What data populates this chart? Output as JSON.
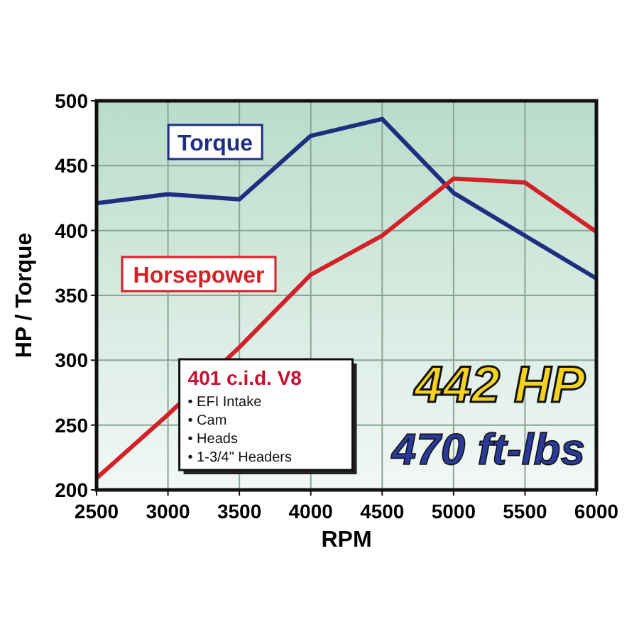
{
  "chart_data": {
    "type": "line",
    "xlabel": "RPM",
    "ylabel": "HP / Torque",
    "x": [
      2500,
      3000,
      3500,
      4000,
      4500,
      5000,
      5500,
      6000
    ],
    "series": [
      {
        "name": "Torque",
        "color": "#1f2f80",
        "values": [
          421,
          428,
          424,
          473,
          486,
          429,
          396,
          363
        ]
      },
      {
        "name": "Horsepower",
        "color": "#d42027",
        "values": [
          209,
          258,
          310,
          366,
          396,
          440,
          437,
          399
        ]
      }
    ],
    "xlim": [
      2500,
      6000
    ],
    "xticks": [
      2500,
      3000,
      3500,
      4000,
      4500,
      5000,
      5500,
      6000
    ],
    "ylim": [
      200,
      500
    ],
    "yticks": [
      200,
      250,
      300,
      350,
      400,
      450,
      500
    ],
    "grid": true,
    "marker": "none",
    "line_style": "solid",
    "annotations": [
      "401 c.i.d. V8",
      "• EFI Intake",
      "• Cam",
      "• Heads",
      "• 1-3/4\" Headers",
      "442 HP",
      "470 ft-lbs"
    ]
  }
}
